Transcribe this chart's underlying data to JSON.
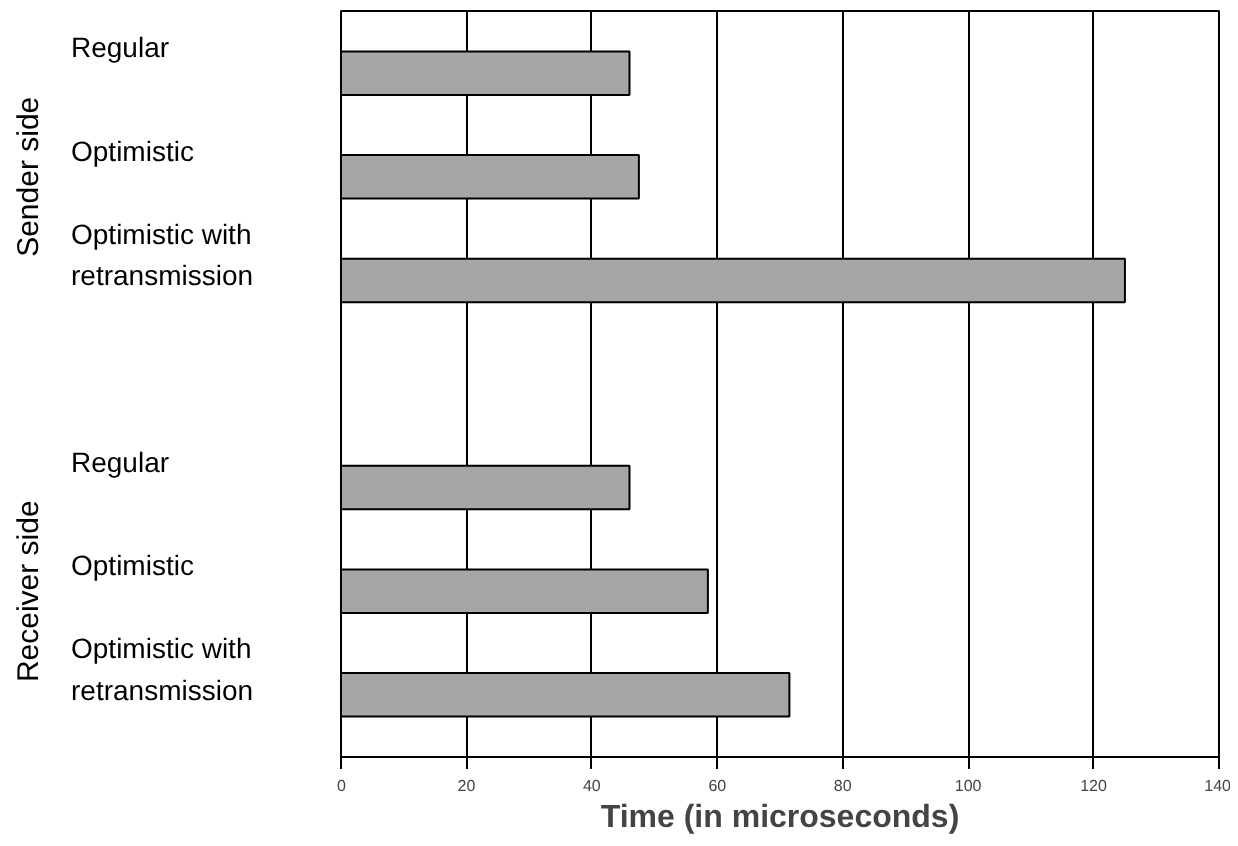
{
  "chart_data": {
    "type": "bar",
    "orientation": "horizontal",
    "xlabel": "Time (in microseconds)",
    "categories": [
      "Regular",
      "Optimistic",
      "Optimistic with retransmission",
      null,
      "Regular",
      "Optimistic",
      "Optimistic with retransmission"
    ],
    "values": [
      46,
      47.5,
      125,
      null,
      46,
      58.5,
      71.5
    ],
    "color": "#a6a6a6",
    "xlim": [
      0,
      140
    ],
    "xticks": [
      0,
      20,
      40,
      60,
      80,
      100,
      120,
      140
    ],
    "grid": "x",
    "annotations": [
      "Sender side",
      "Receiver side"
    ]
  }
}
